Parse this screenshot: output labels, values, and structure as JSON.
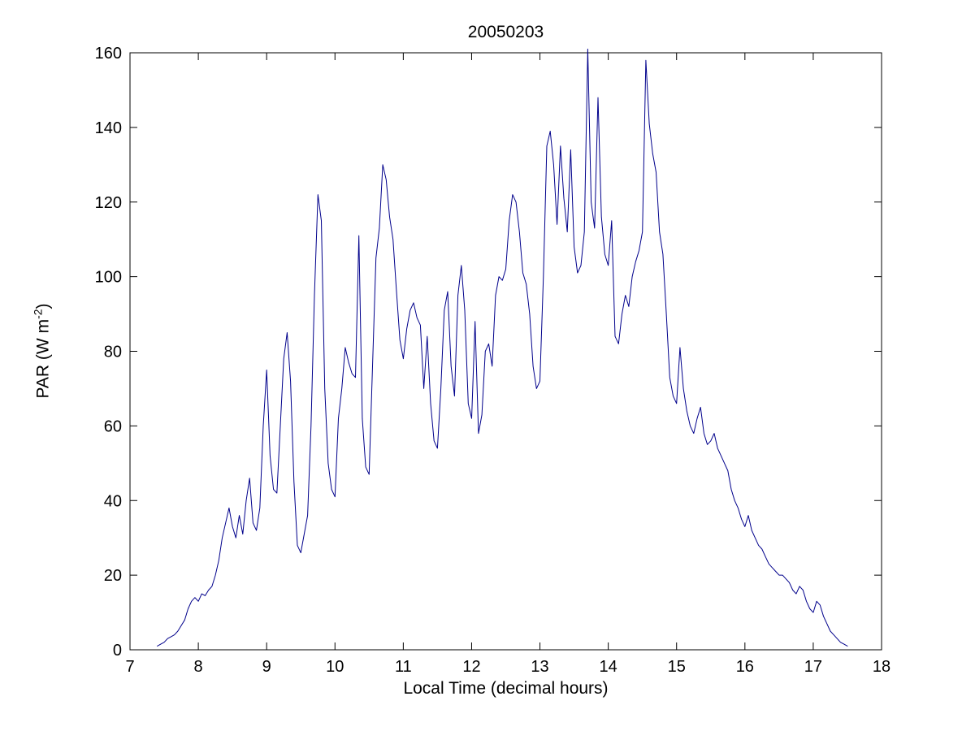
{
  "figure": {
    "title": "20050203",
    "xlabel": "Local Time (decimal hours)",
    "ylabel_prefix": "PAR (W m",
    "ylabel_sup": "-2",
    "ylabel_suffix": ")"
  },
  "colors": {
    "line": "#00008B",
    "axis": "#000000",
    "background": "#FFFFFF"
  },
  "chart_data": {
    "type": "line",
    "title": "20050203",
    "xlabel": "Local Time (decimal hours)",
    "ylabel": "PAR (W m⁻²)",
    "xlim": [
      7,
      18
    ],
    "ylim": [
      0,
      160
    ],
    "x_ticks": [
      7,
      8,
      9,
      10,
      11,
      12,
      13,
      14,
      15,
      16,
      17,
      18
    ],
    "y_ticks": [
      0,
      20,
      40,
      60,
      80,
      100,
      120,
      140,
      160
    ],
    "grid": false,
    "legend": null,
    "line_color": "#00008B",
    "series": [
      {
        "name": "PAR",
        "points": [
          [
            7.4,
            1
          ],
          [
            7.45,
            1.5
          ],
          [
            7.5,
            2
          ],
          [
            7.55,
            3
          ],
          [
            7.6,
            3.5
          ],
          [
            7.65,
            4
          ],
          [
            7.7,
            5
          ],
          [
            7.75,
            6.5
          ],
          [
            7.8,
            8
          ],
          [
            7.85,
            11
          ],
          [
            7.9,
            13
          ],
          [
            7.95,
            14
          ],
          [
            8.0,
            13
          ],
          [
            8.05,
            15
          ],
          [
            8.1,
            14.5
          ],
          [
            8.15,
            16
          ],
          [
            8.2,
            17
          ],
          [
            8.25,
            20
          ],
          [
            8.3,
            24
          ],
          [
            8.35,
            30
          ],
          [
            8.4,
            34
          ],
          [
            8.45,
            38
          ],
          [
            8.5,
            33
          ],
          [
            8.55,
            30
          ],
          [
            8.6,
            36
          ],
          [
            8.65,
            31
          ],
          [
            8.7,
            40
          ],
          [
            8.75,
            46
          ],
          [
            8.8,
            34
          ],
          [
            8.85,
            32
          ],
          [
            8.9,
            38
          ],
          [
            8.95,
            60
          ],
          [
            9.0,
            75
          ],
          [
            9.05,
            52
          ],
          [
            9.1,
            43
          ],
          [
            9.15,
            42
          ],
          [
            9.2,
            60
          ],
          [
            9.25,
            78
          ],
          [
            9.3,
            85
          ],
          [
            9.35,
            72
          ],
          [
            9.4,
            45
          ],
          [
            9.45,
            28
          ],
          [
            9.5,
            26
          ],
          [
            9.55,
            31
          ],
          [
            9.6,
            36
          ],
          [
            9.65,
            60
          ],
          [
            9.7,
            95
          ],
          [
            9.75,
            122
          ],
          [
            9.8,
            115
          ],
          [
            9.85,
            70
          ],
          [
            9.9,
            50
          ],
          [
            9.95,
            43
          ],
          [
            10.0,
            41
          ],
          [
            10.05,
            62
          ],
          [
            10.1,
            70
          ],
          [
            10.15,
            81
          ],
          [
            10.2,
            77
          ],
          [
            10.25,
            74
          ],
          [
            10.3,
            73
          ],
          [
            10.35,
            111
          ],
          [
            10.4,
            62
          ],
          [
            10.45,
            49
          ],
          [
            10.5,
            47
          ],
          [
            10.55,
            76
          ],
          [
            10.6,
            105
          ],
          [
            10.65,
            113
          ],
          [
            10.7,
            130
          ],
          [
            10.75,
            126
          ],
          [
            10.8,
            116
          ],
          [
            10.85,
            110
          ],
          [
            10.9,
            96
          ],
          [
            10.95,
            83
          ],
          [
            11.0,
            78
          ],
          [
            11.05,
            86
          ],
          [
            11.1,
            91
          ],
          [
            11.15,
            93
          ],
          [
            11.2,
            89
          ],
          [
            11.25,
            87
          ],
          [
            11.3,
            70
          ],
          [
            11.35,
            84
          ],
          [
            11.4,
            66
          ],
          [
            11.45,
            56
          ],
          [
            11.5,
            54
          ],
          [
            11.55,
            70
          ],
          [
            11.6,
            91
          ],
          [
            11.65,
            96
          ],
          [
            11.7,
            76
          ],
          [
            11.75,
            68
          ],
          [
            11.8,
            95
          ],
          [
            11.85,
            103
          ],
          [
            11.9,
            91
          ],
          [
            11.95,
            66
          ],
          [
            12.0,
            62
          ],
          [
            12.05,
            88
          ],
          [
            12.1,
            58
          ],
          [
            12.15,
            63
          ],
          [
            12.2,
            80
          ],
          [
            12.25,
            82
          ],
          [
            12.3,
            76
          ],
          [
            12.35,
            95
          ],
          [
            12.4,
            100
          ],
          [
            12.45,
            99
          ],
          [
            12.5,
            102
          ],
          [
            12.55,
            115
          ],
          [
            12.6,
            122
          ],
          [
            12.65,
            120
          ],
          [
            12.7,
            112
          ],
          [
            12.75,
            101
          ],
          [
            12.8,
            98
          ],
          [
            12.85,
            90
          ],
          [
            12.9,
            76
          ],
          [
            12.95,
            70
          ],
          [
            13.0,
            72
          ],
          [
            13.05,
            100
          ],
          [
            13.1,
            135
          ],
          [
            13.15,
            139
          ],
          [
            13.2,
            130
          ],
          [
            13.25,
            114
          ],
          [
            13.3,
            135
          ],
          [
            13.35,
            121
          ],
          [
            13.4,
            112
          ],
          [
            13.45,
            134
          ],
          [
            13.5,
            108
          ],
          [
            13.55,
            101
          ],
          [
            13.6,
            103
          ],
          [
            13.65,
            112
          ],
          [
            13.7,
            161
          ],
          [
            13.75,
            120
          ],
          [
            13.8,
            113
          ],
          [
            13.85,
            148
          ],
          [
            13.9,
            116
          ],
          [
            13.95,
            106
          ],
          [
            14.0,
            103
          ],
          [
            14.05,
            115
          ],
          [
            14.1,
            84
          ],
          [
            14.15,
            82
          ],
          [
            14.2,
            90
          ],
          [
            14.25,
            95
          ],
          [
            14.3,
            92
          ],
          [
            14.35,
            100
          ],
          [
            14.4,
            104
          ],
          [
            14.45,
            107
          ],
          [
            14.5,
            112
          ],
          [
            14.55,
            158
          ],
          [
            14.6,
            141
          ],
          [
            14.65,
            133
          ],
          [
            14.7,
            128
          ],
          [
            14.75,
            112
          ],
          [
            14.8,
            106
          ],
          [
            14.85,
            90
          ],
          [
            14.9,
            73
          ],
          [
            14.95,
            68
          ],
          [
            15.0,
            66
          ],
          [
            15.05,
            81
          ],
          [
            15.1,
            70
          ],
          [
            15.15,
            64
          ],
          [
            15.2,
            60
          ],
          [
            15.25,
            58
          ],
          [
            15.3,
            62
          ],
          [
            15.35,
            65
          ],
          [
            15.4,
            58
          ],
          [
            15.45,
            55
          ],
          [
            15.5,
            56
          ],
          [
            15.55,
            58
          ],
          [
            15.6,
            54
          ],
          [
            15.65,
            52
          ],
          [
            15.7,
            50
          ],
          [
            15.75,
            48
          ],
          [
            15.8,
            43
          ],
          [
            15.85,
            40
          ],
          [
            15.9,
            38
          ],
          [
            15.95,
            35
          ],
          [
            16.0,
            33
          ],
          [
            16.05,
            36
          ],
          [
            16.1,
            32
          ],
          [
            16.15,
            30
          ],
          [
            16.2,
            28
          ],
          [
            16.25,
            27
          ],
          [
            16.3,
            25
          ],
          [
            16.35,
            23
          ],
          [
            16.4,
            22
          ],
          [
            16.45,
            21
          ],
          [
            16.5,
            20
          ],
          [
            16.55,
            20
          ],
          [
            16.6,
            19
          ],
          [
            16.65,
            18
          ],
          [
            16.7,
            16
          ],
          [
            16.75,
            15
          ],
          [
            16.8,
            17
          ],
          [
            16.85,
            16
          ],
          [
            16.9,
            13
          ],
          [
            16.95,
            11
          ],
          [
            17.0,
            10
          ],
          [
            17.05,
            13
          ],
          [
            17.1,
            12
          ],
          [
            17.15,
            9
          ],
          [
            17.2,
            7
          ],
          [
            17.25,
            5
          ],
          [
            17.3,
            4
          ],
          [
            17.35,
            3
          ],
          [
            17.4,
            2
          ],
          [
            17.45,
            1.5
          ],
          [
            17.5,
            1
          ]
        ]
      }
    ]
  }
}
